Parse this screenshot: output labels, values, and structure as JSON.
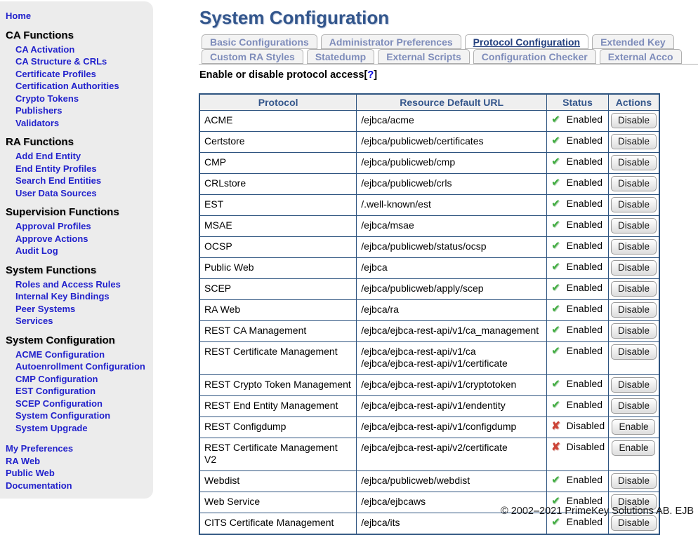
{
  "page_title": "System Configuration",
  "sidebar": {
    "home_label": "Home",
    "sections": [
      {
        "title": "CA Functions",
        "items": [
          "CA Activation",
          "CA Structure & CRLs",
          "Certificate Profiles",
          "Certification Authorities",
          "Crypto Tokens",
          "Publishers",
          "Validators"
        ]
      },
      {
        "title": "RA Functions",
        "items": [
          "Add End Entity",
          "End Entity Profiles",
          "Search End Entities",
          "User Data Sources"
        ]
      },
      {
        "title": "Supervision Functions",
        "items": [
          "Approval Profiles",
          "Approve Actions",
          "Audit Log"
        ]
      },
      {
        "title": "System Functions",
        "items": [
          "Roles and Access Rules",
          "Internal Key Bindings",
          "Peer Systems",
          "Services"
        ]
      },
      {
        "title": "System Configuration",
        "items": [
          "ACME Configuration",
          "Autoenrollment Configuration",
          "CMP Configuration",
          "EST Configuration",
          "SCEP Configuration",
          "System Configuration",
          "System Upgrade"
        ]
      }
    ],
    "footer_links": [
      "My Preferences",
      "RA Web",
      "Public Web",
      "Documentation"
    ]
  },
  "tabs": {
    "row1": [
      {
        "label": "Basic Configurations",
        "active": false
      },
      {
        "label": "Administrator Preferences",
        "active": false
      },
      {
        "label": "Protocol Configuration",
        "active": true
      },
      {
        "label": "Extended Key",
        "active": false
      }
    ],
    "row2": [
      {
        "label": "Custom RA Styles",
        "active": false
      },
      {
        "label": "Statedump",
        "active": false
      },
      {
        "label": "External Scripts",
        "active": false
      },
      {
        "label": "Configuration Checker",
        "active": false
      },
      {
        "label": "External Acco",
        "active": false
      }
    ]
  },
  "section_heading": {
    "text": "Enable or disable protocol access",
    "help_open": "[",
    "help": "?",
    "help_close": "]"
  },
  "protocol_table": {
    "columns": [
      "Protocol",
      "Resource Default URL",
      "Status",
      "Actions"
    ],
    "status_labels": {
      "enabled": "Enabled",
      "disabled": "Disabled"
    },
    "glyphs": {
      "enabled": "✔",
      "disabled": "✘"
    },
    "rows": [
      {
        "protocol": "ACME",
        "urls": [
          "/ejbca/acme"
        ],
        "status": "enabled",
        "action": "Disable"
      },
      {
        "protocol": "Certstore",
        "urls": [
          "/ejbca/publicweb/certificates"
        ],
        "status": "enabled",
        "action": "Disable"
      },
      {
        "protocol": "CMP",
        "urls": [
          "/ejbca/publicweb/cmp"
        ],
        "status": "enabled",
        "action": "Disable"
      },
      {
        "protocol": "CRLstore",
        "urls": [
          "/ejbca/publicweb/crls"
        ],
        "status": "enabled",
        "action": "Disable"
      },
      {
        "protocol": "EST",
        "urls": [
          "/.well-known/est"
        ],
        "status": "enabled",
        "action": "Disable"
      },
      {
        "protocol": "MSAE",
        "urls": [
          "/ejbca/msae"
        ],
        "status": "enabled",
        "action": "Disable"
      },
      {
        "protocol": "OCSP",
        "urls": [
          "/ejbca/publicweb/status/ocsp"
        ],
        "status": "enabled",
        "action": "Disable"
      },
      {
        "protocol": "Public Web",
        "urls": [
          "/ejbca"
        ],
        "status": "enabled",
        "action": "Disable"
      },
      {
        "protocol": "SCEP",
        "urls": [
          "/ejbca/publicweb/apply/scep"
        ],
        "status": "enabled",
        "action": "Disable"
      },
      {
        "protocol": "RA Web",
        "urls": [
          "/ejbca/ra"
        ],
        "status": "enabled",
        "action": "Disable"
      },
      {
        "protocol": "REST CA Management",
        "urls": [
          "/ejbca/ejbca-rest-api/v1/ca_management"
        ],
        "status": "enabled",
        "action": "Disable"
      },
      {
        "protocol": "REST Certificate Management",
        "urls": [
          "/ejbca/ejbca-rest-api/v1/ca",
          "/ejbca/ejbca-rest-api/v1/certificate"
        ],
        "status": "enabled",
        "action": "Disable"
      },
      {
        "protocol": "REST Crypto Token Management",
        "urls": [
          "/ejbca/ejbca-rest-api/v1/cryptotoken"
        ],
        "status": "enabled",
        "action": "Disable"
      },
      {
        "protocol": "REST End Entity Management",
        "urls": [
          "/ejbca/ejbca-rest-api/v1/endentity"
        ],
        "status": "enabled",
        "action": "Disable"
      },
      {
        "protocol": "REST Configdump",
        "urls": [
          "/ejbca/ejbca-rest-api/v1/configdump"
        ],
        "status": "disabled",
        "action": "Enable"
      },
      {
        "protocol": "REST Certificate Management V2",
        "urls": [
          "/ejbca/ejbca-rest-api/v2/certificate"
        ],
        "status": "disabled",
        "action": "Enable"
      },
      {
        "protocol": "Webdist",
        "urls": [
          "/ejbca/publicweb/webdist"
        ],
        "status": "enabled",
        "action": "Disable"
      },
      {
        "protocol": "Web Service",
        "urls": [
          "/ejbca/ejbcaws"
        ],
        "status": "enabled",
        "action": "Disable"
      },
      {
        "protocol": "CITS Certificate Management",
        "urls": [
          "/ejbca/its"
        ],
        "status": "enabled",
        "action": "Disable"
      }
    ]
  },
  "footer": {
    "copyright": "© 2002–2021 PrimeKey Solutions AB. EJB"
  },
  "colors": {
    "accent": "#34568b",
    "link_blue": "#2222cc",
    "enabled_green": "#3dab3d",
    "disabled_red": "#cc4437",
    "sidebar_bg": "#ececec"
  }
}
